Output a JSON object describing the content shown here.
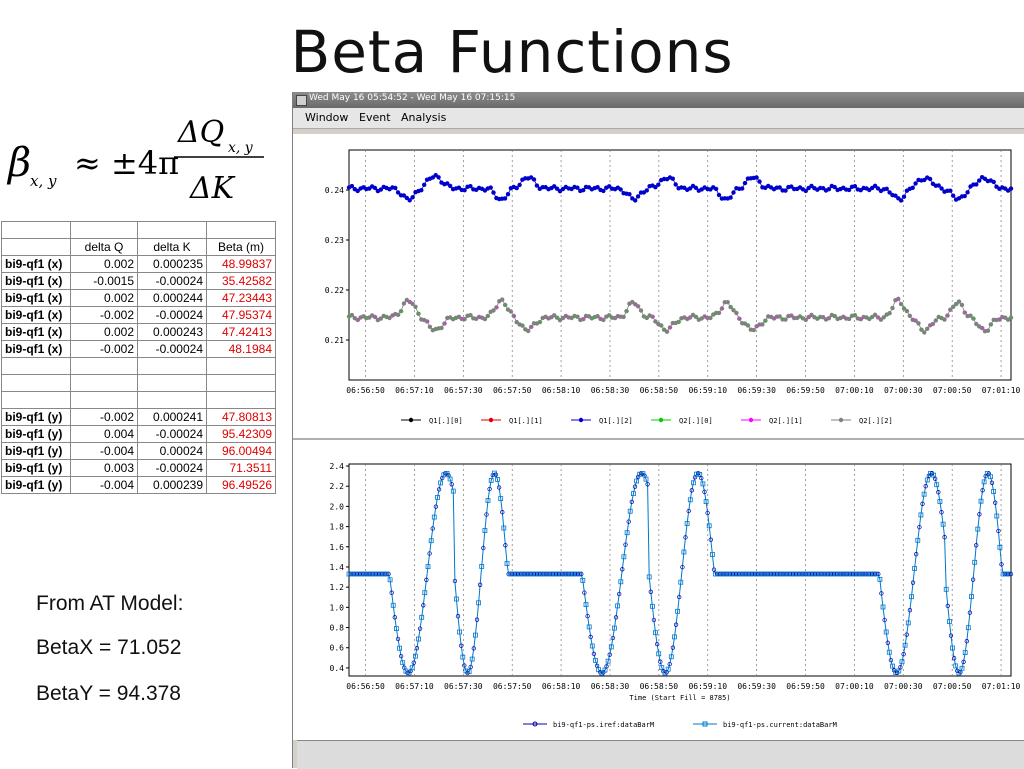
{
  "slide": {
    "title": "Beta Functions",
    "formula": {
      "beta": "β",
      "beta_sub": "x, y",
      "approx": "≈ ±4π",
      "num": "ΔQ",
      "num_sub": "x, y",
      "den": "ΔK"
    },
    "table": {
      "header": [
        "",
        "delta Q",
        "delta K",
        "Beta (m)"
      ],
      "rows_x": [
        [
          "bi9-qf1 (x)",
          "0.002",
          "0.000235",
          "48.99837"
        ],
        [
          "bi9-qf1 (x)",
          "-0.0015",
          "-0.00024",
          "35.42582"
        ],
        [
          "bi9-qf1 (x)",
          "0.002",
          "0.000244",
          "47.23443"
        ],
        [
          "bi9-qf1 (x)",
          "-0.002",
          "-0.00024",
          "47.95374"
        ],
        [
          "bi9-qf1 (x)",
          "0.002",
          "0.000243",
          "47.42413"
        ],
        [
          "bi9-qf1 (x)",
          "-0.002",
          "-0.00024",
          "48.1984"
        ]
      ],
      "rows_y": [
        [
          "bi9-qf1 (y)",
          "-0.002",
          "0.000241",
          "47.80813"
        ],
        [
          "bi9-qf1 (y)",
          "0.004",
          "-0.00024",
          "95.42309"
        ],
        [
          "bi9-qf1 (y)",
          "-0.004",
          "0.00024",
          "96.00494"
        ],
        [
          "bi9-qf1 (y)",
          "0.003",
          "-0.00024",
          "71.3511"
        ],
        [
          "bi9-qf1 (y)",
          "-0.004",
          "0.000239",
          "96.49526"
        ]
      ]
    },
    "model_heading": "From AT Model:",
    "betax": "BetaX = 71.052",
    "betay": "BetaY = 94.378"
  },
  "window": {
    "title": "Wed May 16 05:54:52 - Wed May 16 07:15:15",
    "menu": [
      "Window",
      "Event",
      "Analysis"
    ]
  },
  "chart_data": [
    {
      "type": "scatter",
      "title": "",
      "ylim": [
        0.202,
        0.248
      ],
      "yticks": [
        "0.24",
        "0.23",
        "0.22",
        "0.21"
      ],
      "yticks_values": [
        0.24,
        0.23,
        0.22,
        0.21
      ],
      "xticks": [
        "06:56:50",
        "06:57:10",
        "06:57:30",
        "06:57:50",
        "06:58:10",
        "06:58:30",
        "06:58:50",
        "06:59:10",
        "06:59:30",
        "06:59:50",
        "07:00:10",
        "07:00:30",
        "07:00:50",
        "07:01:10"
      ],
      "grid": true,
      "legend": [
        "Q1[.][0]",
        "Q1[.][1]",
        "Q1[.][2]",
        "Q2[.][0]",
        "Q2[.][1]",
        "Q2[.][2]"
      ],
      "legend_colors": [
        "#000000",
        "#e00000",
        "#0000cc",
        "#00cc00",
        "#ff00ff",
        "#808080"
      ],
      "legend_position": "bottom",
      "series": [
        {
          "name": "Q1[.][2]",
          "color": "#0000cc",
          "baseline": 0.2403,
          "dips": [
            [
              0.09,
              0.012,
              -0.0023
            ],
            [
              0.13,
              0.015,
              0.0025
            ],
            [
              0.23,
              0.012,
              -0.0022
            ],
            [
              0.27,
              0.014,
              0.0022
            ],
            [
              0.43,
              0.012,
              -0.0022
            ],
            [
              0.48,
              0.014,
              0.0022
            ],
            [
              0.57,
              0.012,
              -0.0022
            ],
            [
              0.61,
              0.014,
              0.0022
            ],
            [
              0.83,
              0.012,
              -0.0022
            ],
            [
              0.87,
              0.014,
              0.0022
            ],
            [
              0.92,
              0.012,
              -0.0022
            ],
            [
              0.96,
              0.014,
              0.0022
            ]
          ]
        },
        {
          "name": "Q2[.][2]",
          "color": "#808080",
          "baseline": 0.2145,
          "dips": [
            [
              0.09,
              0.014,
              0.0033
            ],
            [
              0.13,
              0.015,
              -0.0025
            ],
            [
              0.23,
              0.012,
              0.0035
            ],
            [
              0.27,
              0.014,
              -0.0025
            ],
            [
              0.43,
              0.012,
              0.003
            ],
            [
              0.48,
              0.014,
              -0.0025
            ],
            [
              0.57,
              0.012,
              0.003
            ],
            [
              0.61,
              0.014,
              -0.0025
            ],
            [
              0.83,
              0.012,
              0.0035
            ],
            [
              0.87,
              0.014,
              -0.0025
            ],
            [
              0.92,
              0.012,
              0.003
            ],
            [
              0.96,
              0.014,
              -0.0025
            ]
          ]
        }
      ]
    },
    {
      "type": "line",
      "ylim": [
        0.32,
        2.42
      ],
      "yticks": [
        "2.4",
        "2.2",
        "2.0",
        "1.8",
        "1.6",
        "1.4",
        "1.2",
        "1.0",
        "0.8",
        "0.6",
        "0.4"
      ],
      "yticks_values": [
        2.4,
        2.2,
        2.0,
        1.8,
        1.6,
        1.4,
        1.2,
        1.0,
        0.8,
        0.6,
        0.4
      ],
      "xticks": [
        "06:56:50",
        "06:57:10",
        "06:57:30",
        "06:57:50",
        "06:58:10",
        "06:58:30",
        "06:58:50",
        "06:59:10",
        "06:59:30",
        "06:59:50",
        "07:00:10",
        "07:00:30",
        "07:00:50",
        "07:01:10"
      ],
      "xlabel": "Time (Start Fill = 8785)",
      "grid": true,
      "legend": [
        "bi9-qf1-ps.iref:dataBarM",
        "bi9-qf1-ps.current:dataBarM"
      ],
      "legend_colors": [
        "#0000aa",
        "#0077cc"
      ],
      "legend_position": "bottom",
      "baseline": 1.33,
      "peak": 2.33,
      "trough": 0.35,
      "pulses": [
        {
          "trough_at": 0.099,
          "peak_at": 0.137
        },
        {
          "trough_at": 0.186,
          "peak_at": 0.213
        },
        {
          "trough_at": 0.392,
          "peak_at": 0.432
        },
        {
          "trough_at": 0.486,
          "peak_at": 0.519
        },
        {
          "trough_at": 0.836,
          "peak_at": 0.871
        },
        {
          "trough_at": 0.929,
          "peak_at": 0.958
        }
      ]
    }
  ]
}
